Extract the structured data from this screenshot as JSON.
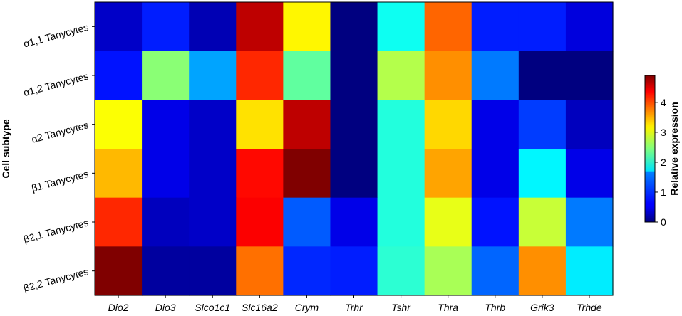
{
  "chart_data": {
    "type": "heatmap",
    "ylabel": "Cell subtype",
    "colorbar_label": "Relative expression",
    "colormap": "jet",
    "value_range": [
      0,
      4.9
    ],
    "colorbar_ticks": [
      "0",
      "1",
      "2",
      "3",
      "4"
    ],
    "colorbar_tick_values": [
      0,
      1,
      2,
      3,
      4
    ],
    "rows": [
      "α1,1 Tanycytes",
      "α1,2 Tanycytes",
      "α2 Tanycytes",
      "β1 Tanycytes",
      "β2,1 Tanycytes",
      "β2,2 Tanycytes"
    ],
    "columns": [
      "Dio2",
      "Dio3",
      "Slco1c1",
      "Slc16a2",
      "Crym",
      "Trhr",
      "Tshr",
      "Thra",
      "Thrb",
      "Grik3",
      "Trhde"
    ],
    "values": [
      [
        0.35,
        0.75,
        0.25,
        4.6,
        3.1,
        0.0,
        1.9,
        3.8,
        0.75,
        0.75,
        0.45
      ],
      [
        0.7,
        2.5,
        1.4,
        4.1,
        2.3,
        0.0,
        2.7,
        3.6,
        1.2,
        0.0,
        0.0
      ],
      [
        3.05,
        0.5,
        0.35,
        3.2,
        4.6,
        0.0,
        2.0,
        3.25,
        0.5,
        0.9,
        0.3
      ],
      [
        3.4,
        0.5,
        0.35,
        4.25,
        4.9,
        0.0,
        2.0,
        3.5,
        0.5,
        1.8,
        0.5
      ],
      [
        4.1,
        0.3,
        0.35,
        4.3,
        1.05,
        0.5,
        2.0,
        2.95,
        0.7,
        2.8,
        1.2
      ],
      [
        4.9,
        0.15,
        0.15,
        3.75,
        0.8,
        0.75,
        2.05,
        2.65,
        1.1,
        3.6,
        1.75
      ]
    ]
  }
}
